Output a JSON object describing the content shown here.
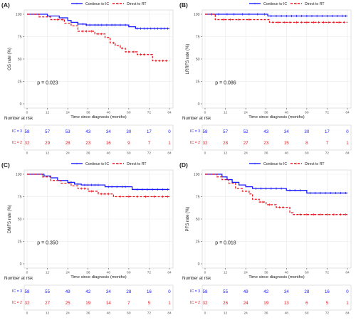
{
  "colors": {
    "ic": "#1a1aff",
    "rt": "#e8141e",
    "grid": "#e9e9e9",
    "axis": "#555555",
    "text": "#222222"
  },
  "shared": {
    "xlabel": "Time since diagnosis (months)",
    "risk_title": "Number at risk",
    "risk_labels": [
      "IC = 3",
      "IC = 2"
    ],
    "legend": [
      "Continue to IC",
      "Direct to RT"
    ]
  },
  "chart_data": [
    {
      "type": "line",
      "panel_label": "(A)",
      "ylabel": "OS rate (%)",
      "pvalue": "p = 0.023",
      "xlim": [
        0,
        84
      ],
      "ylim": [
        0,
        100
      ],
      "x_ticks": [
        0,
        12,
        24,
        36,
        48,
        60,
        72,
        84
      ],
      "y_ticks": [
        0,
        25,
        50,
        75,
        100
      ],
      "legend_position": "top",
      "series": [
        {
          "name": "Continue to IC",
          "style": "solid",
          "color": "#1a1aff",
          "points": [
            [
              0,
              100
            ],
            [
              10,
              100
            ],
            [
              12,
              98
            ],
            [
              19,
              96
            ],
            [
              24,
              93
            ],
            [
              26,
              91
            ],
            [
              30,
              89
            ],
            [
              35,
              88
            ],
            [
              60,
              86
            ],
            [
              64,
              84
            ],
            [
              84,
              84
            ]
          ],
          "censors": [
            30,
            33,
            35,
            37,
            40,
            42,
            44,
            47,
            50,
            52,
            55,
            58,
            65,
            67,
            69,
            71,
            73,
            75,
            77,
            79,
            81,
            83
          ]
        },
        {
          "name": "Direct to RT",
          "style": "dashed",
          "color": "#e8141e",
          "points": [
            [
              0,
              100
            ],
            [
              6,
              100
            ],
            [
              7,
              97
            ],
            [
              14,
              94
            ],
            [
              22,
              90
            ],
            [
              26,
              87
            ],
            [
              30,
              81
            ],
            [
              36,
              81
            ],
            [
              40,
              78
            ],
            [
              46,
              74
            ],
            [
              49,
              68
            ],
            [
              52,
              65
            ],
            [
              55,
              62
            ],
            [
              58,
              58
            ],
            [
              62,
              58
            ],
            [
              65,
              55
            ],
            [
              70,
              55
            ],
            [
              74,
              48
            ],
            [
              84,
              48
            ]
          ],
          "censors": [
            18,
            21,
            33,
            35,
            38,
            42,
            44,
            51,
            56,
            60,
            63,
            67,
            69,
            76,
            78,
            80,
            82
          ]
        }
      ],
      "risk_table": {
        "times": [
          0,
          12,
          24,
          36,
          48,
          60,
          72,
          84
        ],
        "ic3": [
          58,
          57,
          53,
          43,
          34,
          30,
          17,
          0
        ],
        "ic2": [
          32,
          29,
          28,
          23,
          16,
          9,
          7,
          1
        ]
      }
    },
    {
      "type": "line",
      "panel_label": "(B)",
      "ylabel": "LRRFS rate (%)",
      "pvalue": "p = 0.086",
      "xlim": [
        0,
        84
      ],
      "ylim": [
        0,
        100
      ],
      "x_ticks": [
        0,
        12,
        24,
        36,
        48,
        60,
        72,
        84
      ],
      "y_ticks": [
        0,
        25,
        50,
        75,
        100
      ],
      "legend_position": "top",
      "series": [
        {
          "name": "Continue to IC",
          "style": "solid",
          "color": "#1a1aff",
          "points": [
            [
              0,
              100
            ],
            [
              36,
              100
            ],
            [
              37,
              98
            ],
            [
              84,
              98
            ]
          ],
          "censors": [
            4,
            8,
            13,
            17,
            22,
            26,
            31,
            35,
            39,
            42,
            45,
            48,
            51,
            54,
            57,
            60,
            63,
            66,
            69,
            72,
            75,
            78,
            81,
            83
          ]
        },
        {
          "name": "Direct to RT",
          "style": "dashed",
          "color": "#e8141e",
          "points": [
            [
              0,
              100
            ],
            [
              5,
              100
            ],
            [
              6,
              94
            ],
            [
              36,
              94
            ],
            [
              38,
              91
            ],
            [
              84,
              91
            ]
          ],
          "censors": [
            11,
            15,
            20,
            26,
            40,
            43,
            47,
            50,
            54,
            57,
            60,
            64,
            67,
            70,
            73,
            76,
            79,
            82
          ]
        }
      ],
      "risk_table": {
        "times": [
          0,
          12,
          24,
          36,
          48,
          60,
          72,
          84
        ],
        "ic3": [
          58,
          57,
          52,
          43,
          34,
          30,
          17,
          0
        ],
        "ic2": [
          32,
          28,
          27,
          23,
          15,
          8,
          7,
          1
        ]
      }
    },
    {
      "type": "line",
      "panel_label": "(C)",
      "ylabel": "DMFS rate (%)",
      "pvalue": "p = 0.350",
      "xlim": [
        0,
        84
      ],
      "ylim": [
        0,
        100
      ],
      "x_ticks": [
        0,
        12,
        24,
        36,
        48,
        60,
        72,
        84
      ],
      "y_ticks": [
        0,
        25,
        50,
        75,
        100
      ],
      "legend_position": "top",
      "series": [
        {
          "name": "Continue to IC",
          "style": "solid",
          "color": "#1a1aff",
          "points": [
            [
              0,
              100
            ],
            [
              8,
              100
            ],
            [
              10,
              98
            ],
            [
              14,
              96
            ],
            [
              18,
              93
            ],
            [
              24,
              91
            ],
            [
              28,
              89
            ],
            [
              32,
              88
            ],
            [
              44,
              88
            ],
            [
              46,
              86
            ],
            [
              60,
              86
            ],
            [
              62,
              83
            ],
            [
              84,
              83
            ]
          ],
          "censors": [
            26,
            30,
            34,
            36,
            38,
            40,
            42,
            48,
            50,
            53,
            56,
            58,
            65,
            68,
            71,
            74,
            77,
            80,
            83
          ]
        },
        {
          "name": "Direct to RT",
          "style": "dashed",
          "color": "#e8141e",
          "points": [
            [
              0,
              100
            ],
            [
              7,
              100
            ],
            [
              9,
              97
            ],
            [
              14,
              93
            ],
            [
              20,
              90
            ],
            [
              26,
              87
            ],
            [
              30,
              84
            ],
            [
              36,
              81
            ],
            [
              42,
              78
            ],
            [
              50,
              78
            ],
            [
              51,
              75
            ],
            [
              84,
              75
            ]
          ],
          "censors": [
            32,
            34,
            38,
            44,
            46,
            48,
            55,
            60,
            65,
            70,
            75,
            80,
            83
          ]
        }
      ],
      "risk_table": {
        "times": [
          0,
          12,
          24,
          36,
          48,
          60,
          72,
          84
        ],
        "ic3": [
          58,
          55,
          49,
          42,
          34,
          28,
          16,
          0
        ],
        "ic2": [
          32,
          27,
          25,
          19,
          14,
          7,
          5,
          1
        ]
      }
    },
    {
      "type": "line",
      "panel_label": "(D)",
      "ylabel": "PFS rate (%)",
      "pvalue": "p = 0.018",
      "xlim": [
        0,
        84
      ],
      "ylim": [
        0,
        100
      ],
      "x_ticks": [
        0,
        12,
        24,
        36,
        48,
        60,
        72,
        84
      ],
      "y_ticks": [
        0,
        25,
        50,
        75,
        100
      ],
      "legend_position": "top",
      "series": [
        {
          "name": "Continue to IC",
          "style": "solid",
          "color": "#1a1aff",
          "points": [
            [
              0,
              100
            ],
            [
              8,
              100
            ],
            [
              10,
              97
            ],
            [
              13,
              94
            ],
            [
              16,
              91
            ],
            [
              20,
              88
            ],
            [
              24,
              86
            ],
            [
              28,
              84
            ],
            [
              46,
              84
            ],
            [
              48,
              82
            ],
            [
              58,
              82
            ],
            [
              60,
              79
            ],
            [
              84,
              79
            ]
          ],
          "censors": [
            30,
            33,
            36,
            39,
            42,
            45,
            50,
            53,
            56,
            62,
            65,
            68,
            71,
            74,
            77,
            80,
            83
          ]
        },
        {
          "name": "Direct to RT",
          "style": "dashed",
          "color": "#e8141e",
          "points": [
            [
              0,
              100
            ],
            [
              6,
              100
            ],
            [
              7,
              97
            ],
            [
              10,
              94
            ],
            [
              14,
              90
            ],
            [
              18,
              84
            ],
            [
              22,
              81
            ],
            [
              26,
              78
            ],
            [
              28,
              72
            ],
            [
              32,
              69
            ],
            [
              36,
              66
            ],
            [
              40,
              66
            ],
            [
              42,
              63
            ],
            [
              48,
              63
            ],
            [
              50,
              57
            ],
            [
              52,
              55
            ],
            [
              84,
              55
            ]
          ],
          "censors": [
            34,
            38,
            44,
            46,
            56,
            60,
            64,
            68,
            72,
            76,
            80,
            83
          ]
        }
      ],
      "risk_table": {
        "times": [
          0,
          12,
          24,
          36,
          48,
          60,
          72,
          84
        ],
        "ic3": [
          58,
          55,
          49,
          42,
          34,
          28,
          16,
          0
        ],
        "ic2": [
          32,
          26,
          24,
          19,
          13,
          6,
          5,
          1
        ]
      }
    }
  ]
}
